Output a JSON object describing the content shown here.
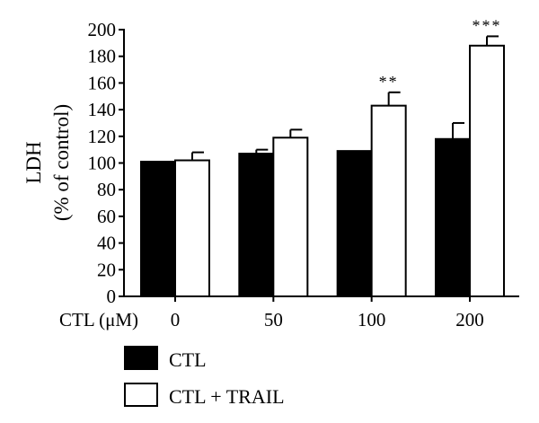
{
  "chart_data": {
    "type": "bar",
    "ylabel_line1": "LDH",
    "ylabel_line2": "(% of control)",
    "xlabel": "CTL (μM)",
    "categories": [
      "0",
      "50",
      "100",
      "200"
    ],
    "ylim": [
      0,
      200
    ],
    "yticks": [
      0,
      20,
      40,
      60,
      80,
      100,
      120,
      140,
      160,
      180,
      200
    ],
    "series": [
      {
        "name": "CTL",
        "color": "#000000",
        "values": [
          101,
          107,
          109,
          118
        ],
        "errors": [
          0,
          3,
          0,
          12
        ]
      },
      {
        "name": "CTL + TRAIL",
        "color": "#ffffff",
        "values": [
          102,
          119,
          143,
          188
        ],
        "errors": [
          6,
          6,
          10,
          7
        ]
      }
    ],
    "significance": [
      "",
      "",
      "**",
      "***"
    ],
    "legend_position": "bottom-left"
  }
}
